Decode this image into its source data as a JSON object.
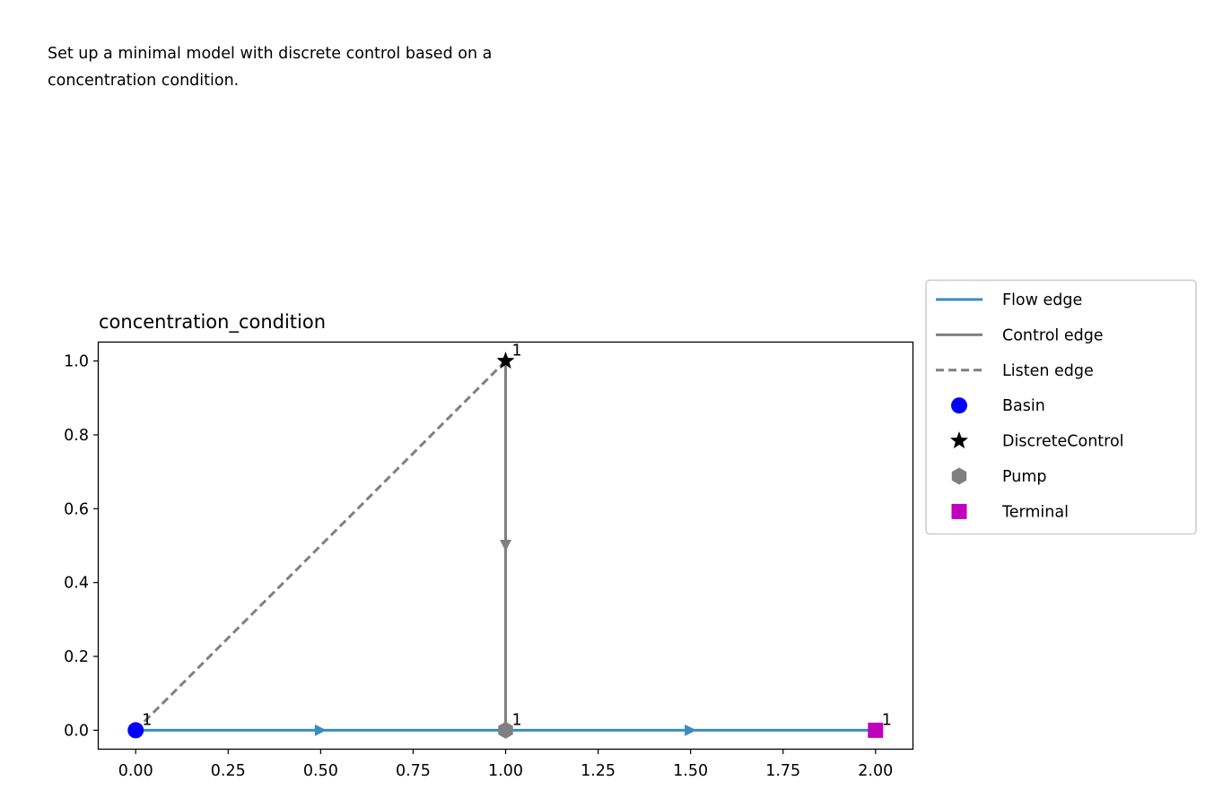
{
  "description": {
    "line1": "Set up a minimal model with discrete control based on a",
    "line2": "concentration condition."
  },
  "chart_data": {
    "type": "scatter",
    "title": "concentration_condition",
    "xlabel": "",
    "ylabel": "",
    "xlim": [
      -0.1,
      2.1
    ],
    "ylim": [
      -0.05,
      1.05
    ],
    "xticks": [
      "0.00",
      "0.25",
      "0.50",
      "0.75",
      "1.00",
      "1.25",
      "1.50",
      "1.75",
      "2.00"
    ],
    "yticks": [
      "0.0",
      "0.2",
      "0.4",
      "0.6",
      "0.8",
      "1.0"
    ],
    "grid": false,
    "legend_position": "outside-right",
    "nodes": [
      {
        "type": "Basin",
        "x": 0.0,
        "y": 0.0,
        "label": "1",
        "color": "#0000ff",
        "marker": "circle"
      },
      {
        "type": "Pump",
        "x": 1.0,
        "y": 0.0,
        "label": "1",
        "color": "#808080",
        "marker": "hexagon"
      },
      {
        "type": "Terminal",
        "x": 2.0,
        "y": 0.0,
        "label": "1",
        "color": "#bf00bf",
        "marker": "square"
      },
      {
        "type": "DiscreteControl",
        "x": 1.0,
        "y": 1.0,
        "label": "1",
        "color": "#000000",
        "marker": "star"
      }
    ],
    "edges": [
      {
        "kind": "flow",
        "from": [
          0.0,
          0.0
        ],
        "to": [
          1.0,
          0.0
        ]
      },
      {
        "kind": "flow",
        "from": [
          1.0,
          0.0
        ],
        "to": [
          2.0,
          0.0
        ]
      },
      {
        "kind": "control",
        "from": [
          1.0,
          1.0
        ],
        "to": [
          1.0,
          0.0
        ]
      },
      {
        "kind": "listen",
        "from": [
          1.0,
          1.0
        ],
        "to": [
          0.0,
          0.0
        ]
      }
    ],
    "colors": {
      "flow": "#3a8cbf",
      "control": "#808080",
      "listen": "#808080"
    },
    "legend": [
      {
        "label": "Flow edge",
        "kind": "line",
        "style": "solid",
        "color": "#3a8cbf"
      },
      {
        "label": "Control edge",
        "kind": "line",
        "style": "solid",
        "color": "#808080"
      },
      {
        "label": "Listen edge",
        "kind": "line",
        "style": "dashed",
        "color": "#808080"
      },
      {
        "label": "Basin",
        "kind": "marker",
        "marker": "circle",
        "color": "#0000ff"
      },
      {
        "label": "DiscreteControl",
        "kind": "marker",
        "marker": "star",
        "color": "#000000"
      },
      {
        "label": "Pump",
        "kind": "marker",
        "marker": "hexagon",
        "color": "#808080"
      },
      {
        "label": "Terminal",
        "kind": "marker",
        "marker": "square",
        "color": "#bf00bf"
      }
    ]
  }
}
